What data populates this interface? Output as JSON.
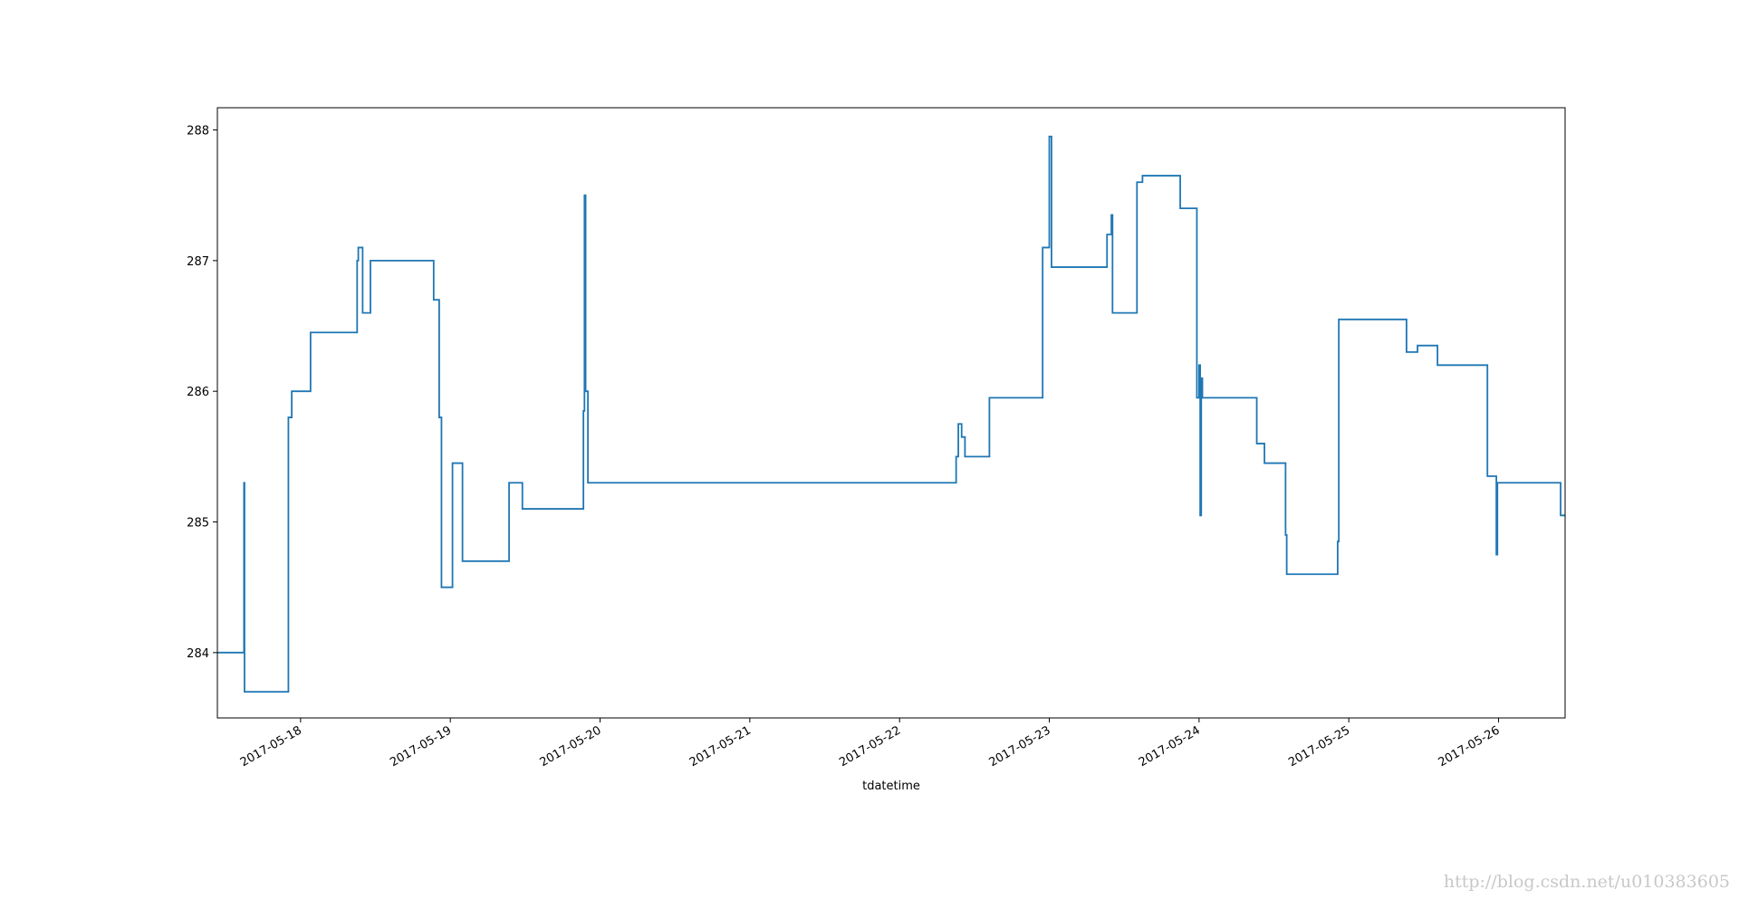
{
  "chart_data": {
    "type": "line",
    "drawstyle": "steps-post",
    "xlabel": "tdatetime",
    "x": [
      "2017-05-17T10:40",
      "2017-05-17T14:56",
      "2017-05-17T15:01",
      "2017-05-17T22:03",
      "2017-05-17T22:35",
      "2017-05-18T01:36",
      "2017-05-18T09:04",
      "2017-05-18T09:15",
      "2017-05-18T09:57",
      "2017-05-18T11:12",
      "2017-05-18T21:20",
      "2017-05-18T22:13",
      "2017-05-18T22:35",
      "2017-05-19T00:21",
      "2017-05-19T01:57",
      "2017-05-19T09:25",
      "2017-05-19T11:33",
      "2017-05-19T21:20",
      "2017-05-19T21:30",
      "2017-05-19T21:41",
      "2017-05-19T22:03",
      "2017-05-22T09:04",
      "2017-05-22T09:25",
      "2017-05-22T09:57",
      "2017-05-22T10:29",
      "2017-05-22T14:24",
      "2017-05-22T22:56",
      "2017-05-23T00:00",
      "2017-05-23T00:21",
      "2017-05-23T09:15",
      "2017-05-23T09:57",
      "2017-05-23T10:08",
      "2017-05-23T14:03",
      "2017-05-23T14:56",
      "2017-05-23T20:59",
      "2017-05-23T23:39",
      "2017-05-24T00:00",
      "2017-05-24T00:11",
      "2017-05-24T00:21",
      "2017-05-24T00:32",
      "2017-05-24T09:15",
      "2017-05-24T10:29",
      "2017-05-24T13:52",
      "2017-05-24T14:03",
      "2017-05-24T22:13",
      "2017-05-24T22:24",
      "2017-05-25T09:15",
      "2017-05-25T11:01",
      "2017-05-25T14:13",
      "2017-05-25T22:13",
      "2017-05-25T23:39",
      "2017-05-25T23:49",
      "2017-05-26T09:57"
    ],
    "series": [
      {
        "color": "#1f77b4",
        "values": [
          284.0,
          285.3,
          283.7,
          285.8,
          286.0,
          286.45,
          287.0,
          287.1,
          286.6,
          287.0,
          286.7,
          285.8,
          284.5,
          285.45,
          284.7,
          285.3,
          285.1,
          285.85,
          287.5,
          286.0,
          285.3,
          285.5,
          285.75,
          285.65,
          285.5,
          285.95,
          287.1,
          287.95,
          286.95,
          287.2,
          287.35,
          286.6,
          287.6,
          287.65,
          287.4,
          285.95,
          286.2,
          285.05,
          286.1,
          285.95,
          285.6,
          285.45,
          284.9,
          284.6,
          284.85,
          286.55,
          286.3,
          286.35,
          286.2,
          285.35,
          284.75,
          285.3,
          285.05
        ]
      }
    ],
    "xlim": [
      "2017-05-17T10:40",
      "2017-05-26T10:40"
    ],
    "xticks": [
      "2017-05-18",
      "2017-05-19",
      "2017-05-20",
      "2017-05-21",
      "2017-05-22",
      "2017-05-23",
      "2017-05-24",
      "2017-05-25",
      "2017-05-26"
    ],
    "ylim": [
      283.5,
      288.17
    ],
    "yticks": [
      284,
      285,
      286,
      287,
      288
    ],
    "watermark": "http://blog.csdn.net/u010383605"
  }
}
